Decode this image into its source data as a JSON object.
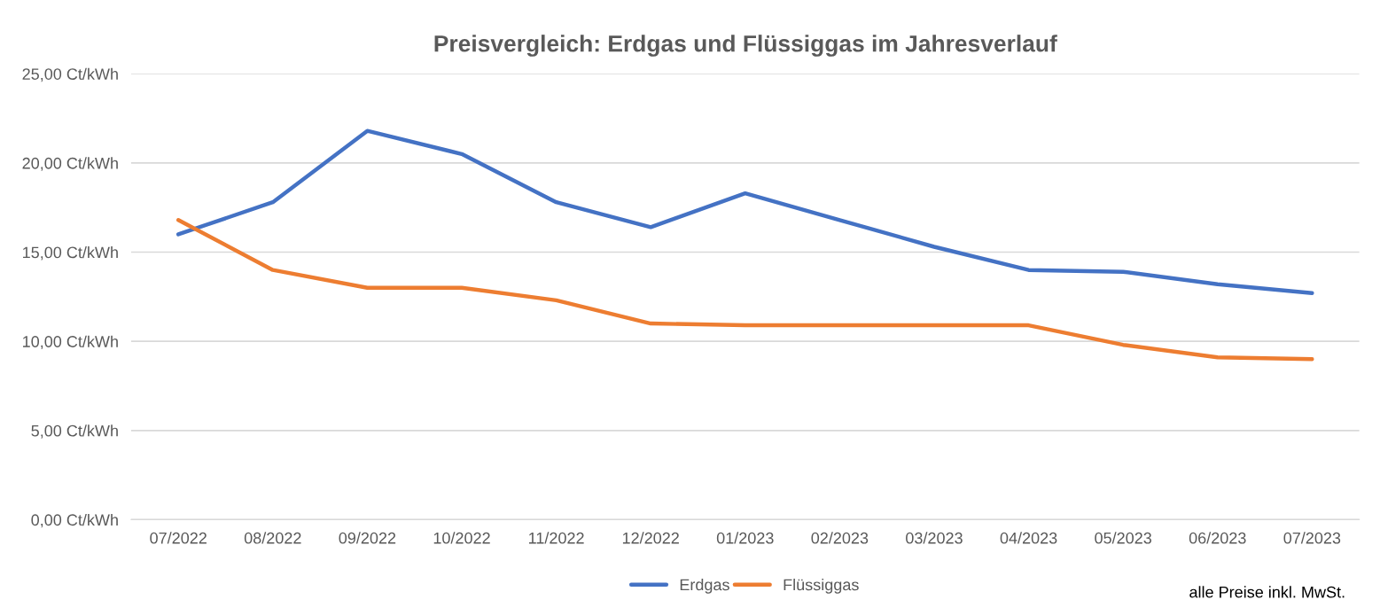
{
  "chart_data": {
    "type": "line",
    "title": "Preisvergleich: Erdgas und Flüssiggas im Jahresverlauf",
    "categories": [
      "07/2022",
      "08/2022",
      "09/2022",
      "10/2022",
      "11/2022",
      "12/2022",
      "01/2023",
      "02/2023",
      "03/2023",
      "04/2023",
      "05/2023",
      "06/2023",
      "07/2023"
    ],
    "series": [
      {
        "name": "Erdgas",
        "color": "#4472c4",
        "values": [
          16.0,
          17.8,
          21.8,
          20.5,
          17.8,
          16.4,
          18.3,
          16.8,
          15.3,
          14.0,
          13.9,
          13.2,
          12.7
        ]
      },
      {
        "name": "Flüssiggas",
        "color": "#ed7d31",
        "values": [
          16.8,
          14.0,
          13.0,
          13.0,
          12.3,
          11.0,
          10.9,
          10.9,
          10.9,
          10.9,
          9.8,
          9.1,
          9.0
        ]
      }
    ],
    "ylim": [
      0,
      25
    ],
    "yticks": [
      {
        "value": 0,
        "label": "0,00 Ct/kWh"
      },
      {
        "value": 5,
        "label": "5,00 Ct/kWh"
      },
      {
        "value": 10,
        "label": "10,00 Ct/kWh"
      },
      {
        "value": 15,
        "label": "15,00 Ct/kWh"
      },
      {
        "value": 20,
        "label": "20,00 Ct/kWh"
      },
      {
        "value": 25,
        "label": "25,00 Ct/kWh"
      }
    ],
    "grid": "y",
    "legend": "bottom",
    "marker": "none",
    "line_style": "solid",
    "annotations": [
      "alle Preise inkl. MwSt."
    ]
  }
}
